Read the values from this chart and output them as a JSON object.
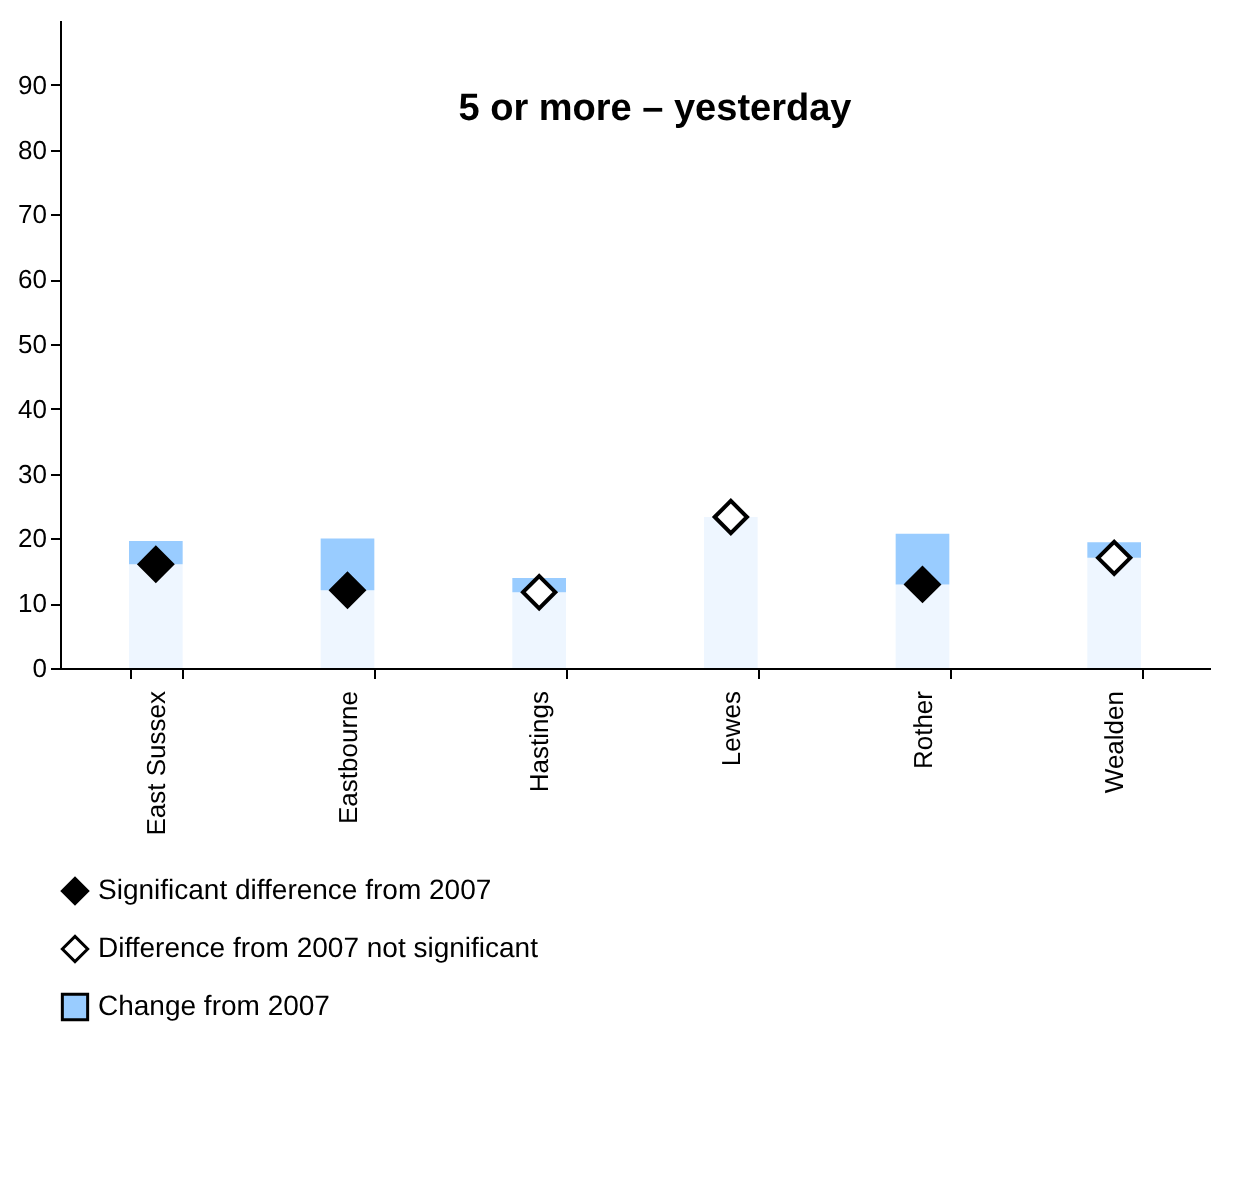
{
  "chart_data": {
    "type": "bar",
    "title": "5 or more – yesterday",
    "categories": [
      "East Sussex",
      "Eastbourne",
      "Hastings",
      "Lewes",
      "Rother",
      "Wealden"
    ],
    "stacked": true,
    "series": [
      {
        "type": "bar",
        "color": "#eef6ff",
        "values": [
          16,
          12,
          11.7,
          23.3,
          12.9,
          17
        ]
      },
      {
        "name": "Significant difference from 2007",
        "type": "scatter",
        "color": "#000000",
        "values": [
          16,
          12,
          null,
          null,
          12.9,
          null
        ]
      },
      {
        "name": "Difference from 2007 not significant",
        "type": "scatter",
        "color": "#ffffff",
        "values": [
          null,
          null,
          11.7,
          23.3,
          null,
          17
        ]
      },
      {
        "name": "Change from 2007",
        "type": "bar",
        "color": "#99ccff",
        "values": [
          3.6,
          8,
          2.2,
          0,
          7.8,
          2.4
        ]
      }
    ],
    "ylim": [
      0,
      100
    ],
    "yticks": [
      0,
      10,
      20,
      30,
      40,
      50,
      60,
      70,
      80,
      90
    ],
    "marker": "diamond",
    "legend": "bottom"
  }
}
